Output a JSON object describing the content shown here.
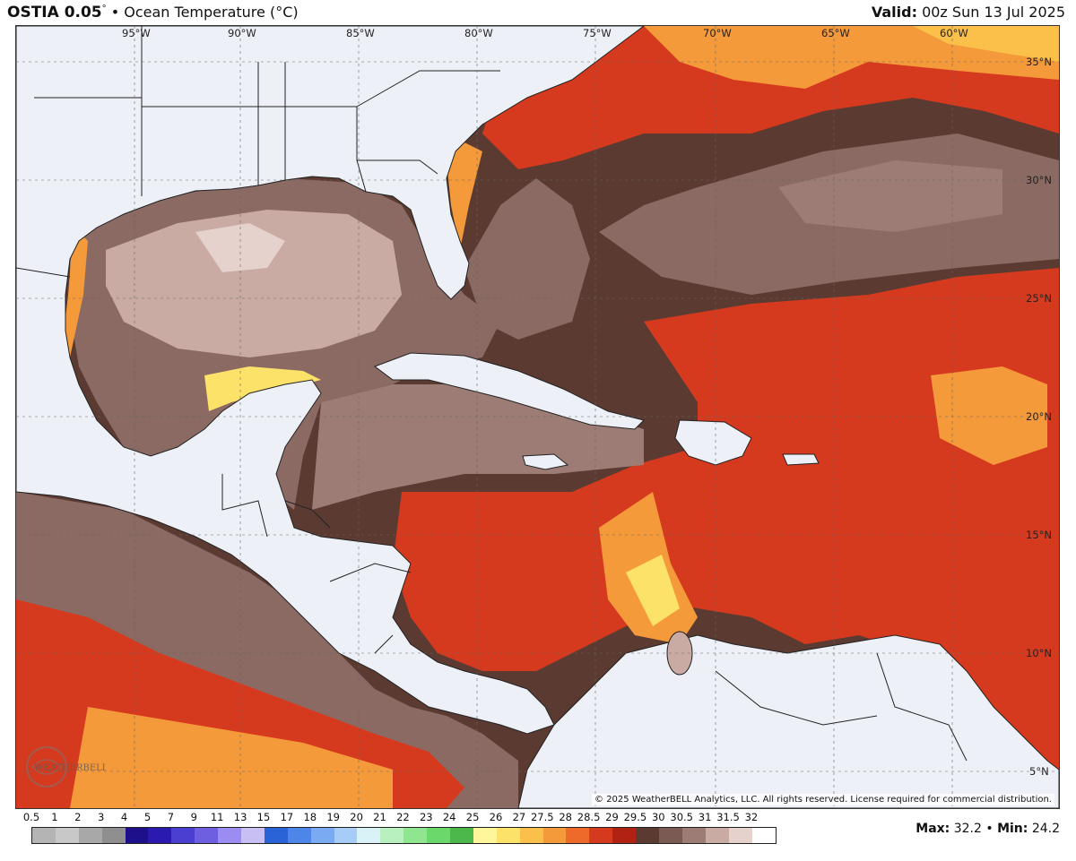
{
  "header": {
    "title_bold": "OSTIA 0.05",
    "title_deg": "°",
    "title_rest": " • Ocean Temperature (°C)",
    "valid_label": "Valid:",
    "valid_value": " 00z Sun 13 Jul 2025"
  },
  "map": {
    "lon_labels": [
      "95°W",
      "90°W",
      "85°W",
      "80°W",
      "75°W",
      "70°W",
      "65°W",
      "60°W"
    ],
    "lat_labels": [
      "35°N",
      "30°N",
      "25°N",
      "20°N",
      "15°N",
      "10°N",
      "5°N"
    ],
    "copyright": "© 2025 WeatherBELL Analytics, LLC. All rights reserved. License required for commercial distribution.",
    "logo_text": "WeatherBELL",
    "colors": {
      "land": "#eef0f8",
      "warm_max": "#fde7a8",
      "orange": "#f59a3a",
      "red": "#d63a1e",
      "brown_dark": "#5b3a31",
      "brown_mid": "#8a6a62",
      "brown_light": "#c9aba4"
    }
  },
  "legend": {
    "labels": [
      "0.5",
      "1",
      "2",
      "3",
      "4",
      "5",
      "7",
      "9",
      "11",
      "13",
      "15",
      "17",
      "18",
      "19",
      "20",
      "21",
      "22",
      "23",
      "24",
      "25",
      "26",
      "27",
      "27.5",
      "28",
      "28.5",
      "29",
      "29.5",
      "30",
      "30.5",
      "31",
      "31.5",
      "32"
    ],
    "colors": [
      "#b4b4b4",
      "#c8c8c8",
      "#a8a8a8",
      "#8f8f8f",
      "#1e0f8a",
      "#2a1ab0",
      "#4a3fd0",
      "#6d5fe0",
      "#9a8cf0",
      "#c8c0f5",
      "#2a62d8",
      "#4d86e8",
      "#7aaaf2",
      "#a8ccf8",
      "#d8f2f8",
      "#b8f0c0",
      "#90e690",
      "#6ad86a",
      "#4cb84c",
      "#fff59a",
      "#fde26a",
      "#fbc04a",
      "#f59a3a",
      "#ee6a2a",
      "#d63a1e",
      "#b22212",
      "#5b3a31",
      "#7a5a52",
      "#9c7c74",
      "#c9aba4",
      "#e6d2cc",
      "#ffffff"
    ],
    "max_label": "Max:",
    "max_value": "32.2",
    "min_label": "Min:",
    "min_value": "24.2"
  }
}
